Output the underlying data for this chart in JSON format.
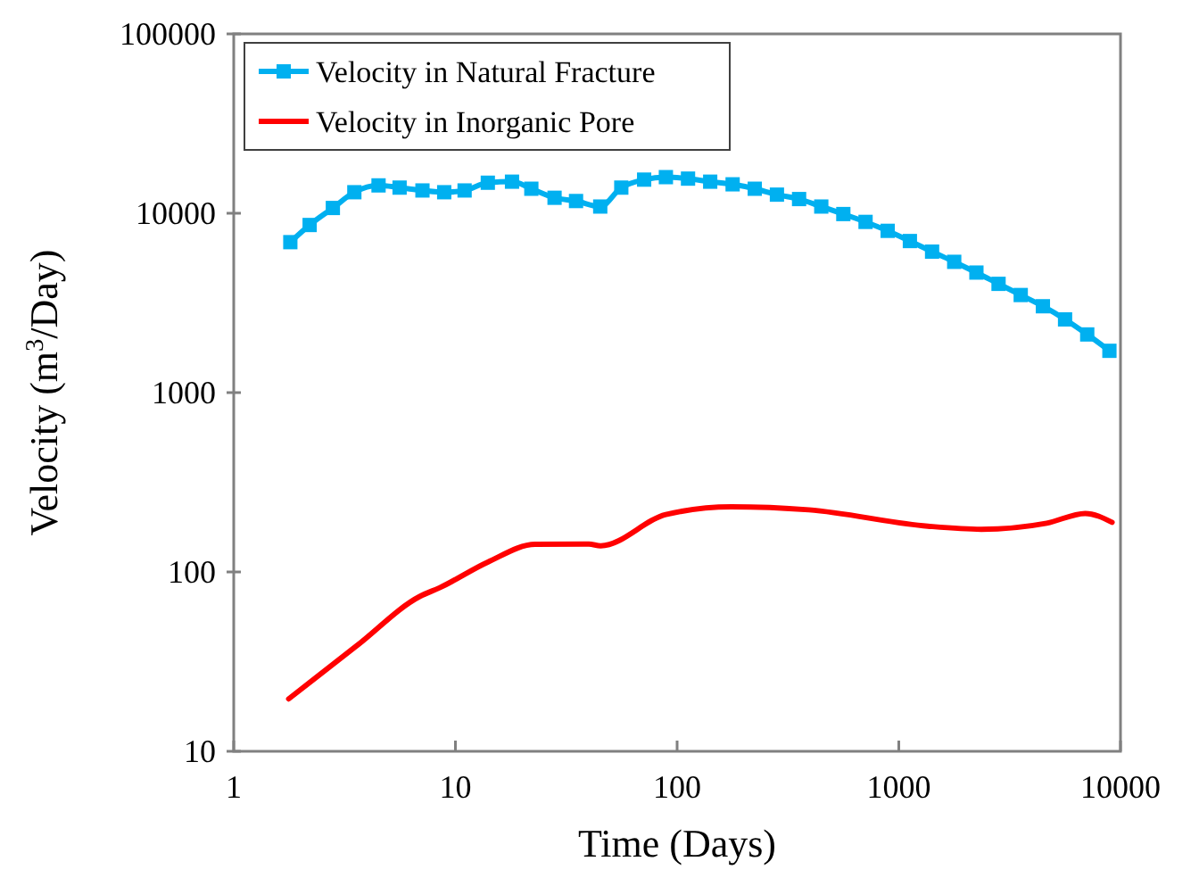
{
  "chart_data": {
    "type": "line",
    "xlabel": "Time (Days)",
    "ylabel": "Velocity (m$^{3}$/Day)",
    "log": "xy",
    "xlim": [
      1,
      10000
    ],
    "ylim": [
      10,
      100000
    ],
    "xticks": [
      1,
      10,
      100,
      1000,
      10000
    ],
    "yticks": [
      10,
      100,
      1000,
      10000,
      100000
    ],
    "grid": false,
    "legend": "top left",
    "series": [
      {
        "name": "Velocity in Natural Fracture",
        "color": "#00b0f0",
        "marker": "square",
        "x": [
          1.8,
          2.2,
          2.8,
          3.5,
          4.5,
          5.6,
          7.1,
          8.9,
          11,
          14,
          18,
          22,
          28,
          35,
          45,
          56,
          71,
          89,
          112,
          141,
          178,
          224,
          282,
          355,
          447,
          562,
          708,
          891,
          1122,
          1413,
          1778,
          2239,
          2818,
          3548,
          4467,
          5623,
          7079,
          8913
        ],
        "values": [
          6900,
          8600,
          10700,
          13100,
          14300,
          13900,
          13400,
          13100,
          13400,
          14800,
          15000,
          13700,
          12200,
          11700,
          10900,
          13900,
          15400,
          15900,
          15600,
          15000,
          14500,
          13700,
          12700,
          12000,
          10900,
          9900,
          8950,
          7980,
          7000,
          6110,
          5360,
          4670,
          4040,
          3500,
          3030,
          2560,
          2110,
          1710
        ]
      },
      {
        "name": "Velocity in Inorganic Pore",
        "color": "#ff0000",
        "marker": "none",
        "x": [
          1.77,
          3.6,
          6.9,
          8.5,
          14,
          22.9,
          40,
          45.2,
          89,
          176,
          393,
          1352,
          2355,
          4650,
          6930,
          9160
        ],
        "values": [
          19.6,
          38.9,
          73,
          81.7,
          113.5,
          142.6,
          143,
          140,
          209,
          231,
          222,
          180,
          173,
          187,
          212,
          189
        ]
      }
    ]
  }
}
